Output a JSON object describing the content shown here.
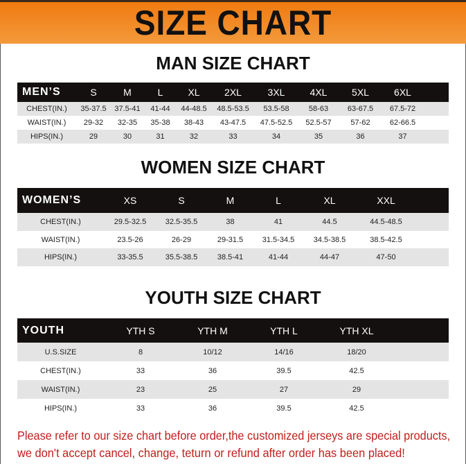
{
  "banner": {
    "title": "SIZE CHART"
  },
  "men": {
    "title": "MAN SIZE CHART",
    "header": [
      "MEN’S",
      "S",
      "M",
      "L",
      "XL",
      "2XL",
      "3XL",
      "4XL",
      "5XL",
      "6XL"
    ],
    "rows": [
      [
        "CHEST(IN.)",
        "35-37.5",
        "37.5-41",
        "41-44",
        "44-48.5",
        "48.5-53.5",
        "53.5-58",
        "58-63",
        "63-67.5",
        "67.5-72"
      ],
      [
        "WAIST(IN.)",
        "29-32",
        "32-35",
        "35-38",
        "38-43",
        "43-47.5",
        "47.5-52.5",
        "52.5-57",
        "57-62",
        "62-66.5"
      ],
      [
        "HIPS(IN.)",
        "29",
        "30",
        "31",
        "32",
        "33",
        "34",
        "35",
        "36",
        "37"
      ]
    ]
  },
  "women": {
    "title": "WOMEN SIZE CHART",
    "header": [
      "WOMEN’S",
      "XS",
      "S",
      "M",
      "L",
      "XL",
      "XXL"
    ],
    "rows": [
      [
        "CHEST(IN.)",
        "29.5-32.5",
        "32.5-35.5",
        "38",
        "41",
        "44.5",
        "44.5-48.5"
      ],
      [
        "WAIST(IN.)",
        "23.5-26",
        "26-29",
        "29-31.5",
        "31.5-34.5",
        "34.5-38.5",
        "38.5-42.5"
      ],
      [
        "HIPS(IN.)",
        "33-35.5",
        "35.5-38.5",
        "38.5-41",
        "41-44",
        "44-47",
        "47-50"
      ]
    ]
  },
  "youth": {
    "title": "YOUTH SIZE CHART",
    "header": [
      "YOUTH",
      "YTH S",
      "YTH M",
      "YTH L",
      "YTH XL"
    ],
    "rows": [
      [
        "U.S.SIZE",
        "8",
        "10/12",
        "14/16",
        "18/20"
      ],
      [
        "CHEST(IN.)",
        "33",
        "36",
        "39.5",
        "42.5"
      ],
      [
        "WAIST(IN.)",
        "23",
        "25",
        "27",
        "29"
      ],
      [
        "HIPS(IN.)",
        "33",
        "36",
        "39.5",
        "42.5"
      ]
    ]
  },
  "notice": {
    "line1": "Please refer to our size chart before order,the customized jerseys are special products,",
    "line2": "we don't accept cancel, change, teturn or refund after order has been placed!"
  },
  "colors": {
    "banner": "#f07a10",
    "header_row": "#141010",
    "notice": "#c0201c"
  }
}
